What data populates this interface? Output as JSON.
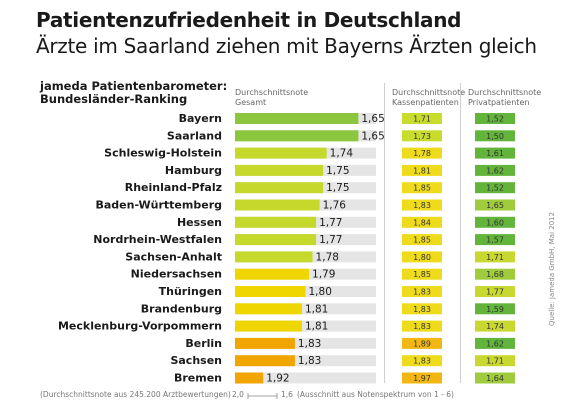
{
  "title": "Patientenzufriedenheit in Deutschland",
  "subtitle": "Ärzte im Saarland ziehen mit Bayerns Ärzten gleich",
  "ranking_title": [
    "jameda Patientenbarometer:",
    "Bundesländer-Ranking"
  ],
  "column_headers": {
    "total": [
      "Durchschnittsnote",
      "Gesamt"
    ],
    "kasse": [
      "Durchschnittsnote",
      "Kassenpatienten"
    ],
    "privat": [
      "Durchschnittsnote",
      "Privatpatienten"
    ]
  },
  "footer": {
    "note_left": "(Durchschnittsnote aus 245.200 Arztbewertungen)",
    "scale_from": "2,0",
    "scale_to": "1,6",
    "note_right": "(Ausschnitt aus Notenspektrum von 1 - 6)"
  },
  "source": "Quelle: jameda GmbH, Mai 2012",
  "colors": {
    "total_green": "#8cc63f",
    "total_yellow_green": "#c5d92d",
    "total_yellow": "#f0d600",
    "total_orange": "#f0a500",
    "bar_track": "#e5e5e5",
    "kasse_green": "#c8dc2e",
    "kasse_yellow": "#eedc1c",
    "kasse_orange": "#f2b713",
    "privat_green": "#63b43b",
    "privat_lightgreen": "#9fcb3d",
    "privat_yellowgreen": "#c8d830"
  },
  "chart_data": {
    "type": "bar",
    "orientation": "horizontal",
    "categories": [
      "Bayern",
      "Saarland",
      "Schleswig-Holstein",
      "Hamburg",
      "Rheinland-Pfalz",
      "Baden-Württemberg",
      "Hessen",
      "Nordrhein-Westfalen",
      "Sachsen-Anhalt",
      "Niedersachsen",
      "Thüringen",
      "Brandenburg",
      "Mecklenburg-Vorpommern",
      "Berlin",
      "Sachsen",
      "Bremen"
    ],
    "series": [
      {
        "name": "Gesamt",
        "values": [
          1.65,
          1.65,
          1.74,
          1.75,
          1.75,
          1.76,
          1.77,
          1.77,
          1.78,
          1.79,
          1.8,
          1.81,
          1.81,
          1.83,
          1.83,
          1.92
        ],
        "labels": [
          "1,65",
          "1,65",
          "1,74",
          "1,75",
          "1,75",
          "1,76",
          "1,77",
          "1,77",
          "1,78",
          "1,79",
          "1,80",
          "1,81",
          "1,81",
          "1,83",
          "1,83",
          "1,92"
        ]
      },
      {
        "name": "Kassenpatienten",
        "values": [
          1.71,
          1.73,
          1.78,
          1.81,
          1.85,
          1.83,
          1.84,
          1.85,
          1.8,
          1.85,
          1.83,
          1.83,
          1.83,
          1.89,
          1.83,
          1.97
        ],
        "labels": [
          "1,71",
          "1,73",
          "1,78",
          "1,81",
          "1,85",
          "1,83",
          "1,84",
          "1,85",
          "1,80",
          "1,85",
          "1,83",
          "1,83",
          "1,83",
          "1,89",
          "1,83",
          "1,97"
        ]
      },
      {
        "name": "Privatpatienten",
        "values": [
          1.52,
          1.5,
          1.61,
          1.62,
          1.52,
          1.65,
          1.6,
          1.57,
          1.71,
          1.68,
          1.77,
          1.59,
          1.74,
          1.62,
          1.71,
          1.64
        ],
        "labels": [
          "1,52",
          "1,50",
          "1,61",
          "1,62",
          "1,52",
          "1,65",
          "1,60",
          "1,57",
          "1,71",
          "1,68",
          "1,77",
          "1,59",
          "1,74",
          "1,62",
          "1,71",
          "1,64"
        ]
      }
    ],
    "axis_range": [
      2.0,
      1.6
    ],
    "grid": false,
    "legend": "none"
  }
}
